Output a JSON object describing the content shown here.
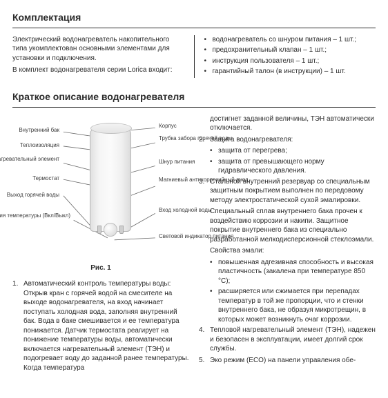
{
  "section1": {
    "title": "Комплектация",
    "left_paragraphs": [
      "Электрический водонагреватель накопительного типа укомплектован основными элементами для установки и подключения.",
      "В комплект водонагревателя серии Lorica входит:"
    ],
    "right_bullets": [
      "водонагреватель со шнуром питания – 1 шт.;",
      "предохранительный клапан – 1 шт.;",
      "инструкция пользователя – 1 шт.;",
      "гарантийный талон (в инструкции) – 1 шт."
    ]
  },
  "section2": {
    "title": "Краткое описание водонагревателя",
    "diagram": {
      "caption": "Рис. 1",
      "labels_left": [
        "Внутренний бак",
        "Теплоизоляция",
        "Нагревательный\nэлемент",
        "Термостат",
        "Выход горячей воды",
        "Ручка регулирования\nтемпературы (Вкл/Выкл)"
      ],
      "labels_right": [
        "Корпус",
        "Трубка забора\nгорячей воды",
        "Шнур\nпитания",
        "Магниевый\nантикоррозийный\nанод",
        "Вход\nхолодной воды",
        "Световой\nиндикатор питания"
      ]
    },
    "left_list": [
      "Автоматический контроль температуры воды: Открыв кран с горячей водой на смесителе на выходе водонагревателя, на вход начинает поступать холодная вода, заполняя внутренний бак. Вода в баке смешивается и ее температура понижается. Датчик термостата реагирует на понижение температуры воды, автоматически включается нагревательный элемент (ТЭН) и подогревает воду до заданной ранее температуры. Когда температура"
    ],
    "right_flow": [
      {
        "type": "p_indent",
        "text": "достигнет заданной величины, ТЭН автоматически отключается."
      },
      {
        "type": "li",
        "n": 2,
        "text": "Защита водонагревателя:"
      },
      {
        "type": "bullets",
        "items": [
          "защита от перегрева;",
          "защита от превышающего норму гидравлического давления."
        ]
      },
      {
        "type": "li",
        "n": 3,
        "text": "Стальной внутренний резервуар со специальным защитным покрытием выполнен по передовому методу электростатической сухой эмалировки."
      },
      {
        "type": "p_indent",
        "text": "Специальный сплав внутреннего бака прочен к воздействию коррозии и накипи. Защитное покрытие внутреннего бака из специально разработанной мелкодисперсионной стеклоэмали."
      },
      {
        "type": "p_indent",
        "text": "Свойства эмали:"
      },
      {
        "type": "bullets",
        "items": [
          "повышенная адгезивная способность и высокая пластичность (закалена при температуре 850 °C);",
          "расширяется или сжимается при перепадах температур в той же пропорции, что и стенки внутреннего бака, не образуя микротрещин, в которых может возникнуть очаг коррозии."
        ]
      },
      {
        "type": "li",
        "n": 4,
        "text": "Тепловой нагревательный элемент (ТЭН), надежен и безопасен в эксплуатации, имеет долгий срок службы."
      },
      {
        "type": "li",
        "n": 5,
        "text": "Эко режим (ECO) на панели управления обе-"
      }
    ]
  }
}
